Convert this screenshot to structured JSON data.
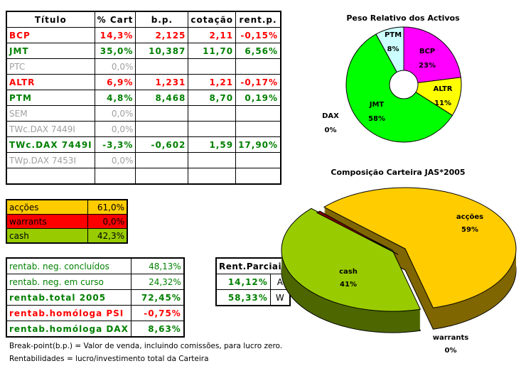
{
  "main_table": {
    "headers": [
      "Título",
      "% Cart",
      "b.p.",
      "cotação",
      "rent.p."
    ],
    "rows": [
      {
        "titulo": "BCP",
        "cart": "14,3%",
        "bp": "2,125",
        "cot": "2,11",
        "rent": "-0,15%",
        "style": "red"
      },
      {
        "titulo": "JMT",
        "cart": "35,0%",
        "bp": "10,387",
        "cot": "11,70",
        "rent": "6,56%",
        "style": "green"
      },
      {
        "titulo": "PTC",
        "cart": "0,0%",
        "bp": "",
        "cot": "",
        "rent": "",
        "style": "gray"
      },
      {
        "titulo": "ALTR",
        "cart": "6,9%",
        "bp": "1,231",
        "cot": "1,21",
        "rent": "-0,17%",
        "style": "red"
      },
      {
        "titulo": "PTM",
        "cart": "4,8%",
        "bp": "8,468",
        "cot": "8,70",
        "rent": "0,19%",
        "style": "green"
      },
      {
        "titulo": "SEM",
        "cart": "0,0%",
        "bp": "",
        "cot": "",
        "rent": "",
        "style": "gray"
      },
      {
        "titulo": "TWc.DAX 7449I",
        "cart": "0,0%",
        "bp": "",
        "cot": "",
        "rent": "",
        "style": "gray"
      },
      {
        "titulo": "TWc.DAX 7449I",
        "cart": "-3,3%",
        "bp": "-0,602",
        "cot": "1,59",
        "rent": "17,90%",
        "style": "green"
      },
      {
        "titulo": "TWp.DAX 7453I",
        "cart": "0,0%",
        "bp": "",
        "cot": "",
        "rent": "",
        "style": "gray"
      },
      {
        "titulo": "",
        "cart": "",
        "bp": "",
        "cot": "",
        "rent": "",
        "style": "gray"
      }
    ]
  },
  "allocation": [
    {
      "label": "acções",
      "value": "61,0%",
      "color": "#ffcc00"
    },
    {
      "label": "warrants",
      "value": "0,0%",
      "color": "#ff0000"
    },
    {
      "label": "cash",
      "value": "42,3%",
      "color": "#99cc00"
    }
  ],
  "returns": [
    {
      "label": "rentab. neg. concluídos",
      "value": "48,13%",
      "style": "green",
      "bold": false
    },
    {
      "label": "rentab. neg. em curso",
      "value": "24,32%",
      "style": "green",
      "bold": false
    },
    {
      "label": "rentab.total 2005",
      "value": "72,45%",
      "style": "green",
      "bold": true
    },
    {
      "label": "rentab.homóloga PSI",
      "value": "-0,75%",
      "style": "red",
      "bold": true
    },
    {
      "label": "rentab.homóloga DAX",
      "value": "8,63%",
      "style": "green",
      "bold": true
    }
  ],
  "partial": {
    "title": "Rent.Parciais",
    "rows": [
      {
        "value": "14,12%",
        "code": "A"
      },
      {
        "value": "58,33%",
        "code": "W"
      }
    ]
  },
  "notes": [
    "Break-point(b.p.) = Valor de venda, incluindo comissões, para lucro zero.",
    "Rentabilidades = lucro/investimento total da Carteira"
  ],
  "chart_data": [
    {
      "type": "pie",
      "variant": "doughnut",
      "title": "Peso Relativo dos Activos",
      "slices": [
        {
          "name": "BCP",
          "value": 23,
          "label": "23%",
          "color": "#ff00ff"
        },
        {
          "name": "ALTR",
          "value": 11,
          "label": "11%",
          "color": "#ffff00"
        },
        {
          "name": "JMT",
          "value": 58,
          "label": "58%",
          "color": "#00ff00"
        },
        {
          "name": "PTM",
          "value": 8,
          "label": "8%",
          "color": "#ccffff"
        },
        {
          "name": "DAX",
          "value": 0,
          "label": "0%",
          "color": "#000000"
        }
      ]
    },
    {
      "type": "pie",
      "variant": "3d-exploded",
      "title": "Composição Carteira JAS*2005",
      "slices": [
        {
          "name": "acções",
          "value": 59,
          "label": "59%",
          "color": "#ffcc00",
          "side": "#806600"
        },
        {
          "name": "cash",
          "value": 41,
          "label": "41%",
          "color": "#99cc00",
          "side": "#4d6600"
        },
        {
          "name": "warrants",
          "value": 0,
          "label": "0%",
          "color": "#800000",
          "side": "#800000"
        }
      ]
    }
  ]
}
